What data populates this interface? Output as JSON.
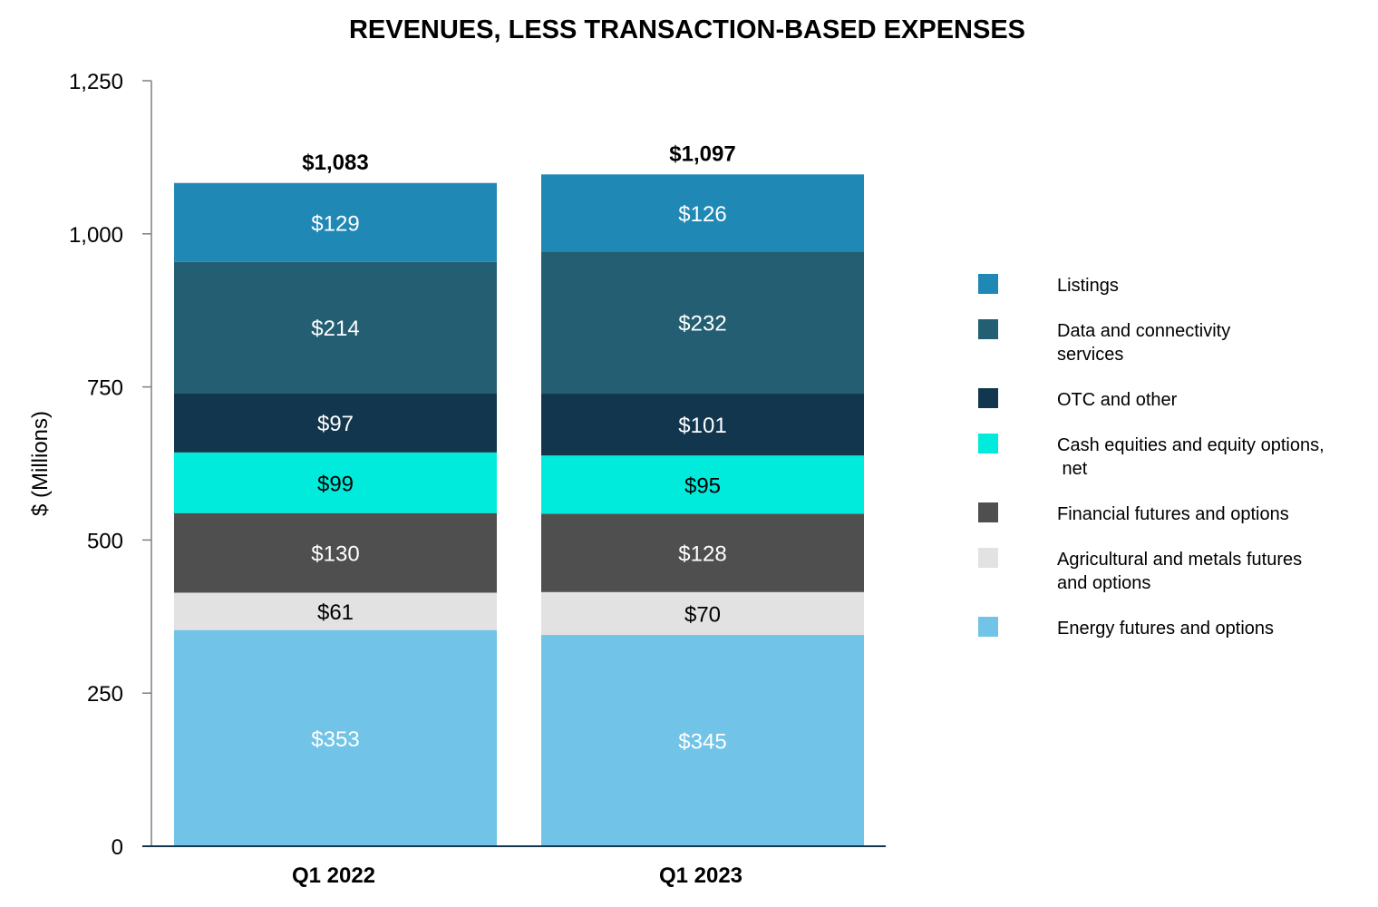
{
  "chart_data": {
    "type": "bar",
    "stacked": true,
    "title": "REVENUES, LESS TRANSACTION-BASED EXPENSES",
    "xlabel": "",
    "ylabel": "$ (Millions)",
    "ylim": [
      0,
      1250
    ],
    "yticks": [
      0,
      250,
      500,
      750,
      1000,
      1250
    ],
    "ytick_labels": [
      "0",
      "250",
      "500",
      "750",
      "1,000",
      "1,250"
    ],
    "categories": [
      "Q1 2022",
      "Q1 2023"
    ],
    "totals": [
      1083,
      1097
    ],
    "total_labels": [
      "$1,083",
      "$1,097"
    ],
    "series": [
      {
        "name": "Energy futures and options",
        "color": "#71C4E7",
        "label_color": "#ffffff",
        "values": [
          353,
          345
        ],
        "labels": [
          "$353",
          "$345"
        ]
      },
      {
        "name": "Agricultural and metals futures and options",
        "color": "#E2E2E2",
        "label_color": "#000000",
        "values": [
          61,
          70
        ],
        "labels": [
          "$61",
          "$70"
        ]
      },
      {
        "name": "Financial futures and options",
        "color": "#4F4F4F",
        "label_color": "#ffffff",
        "values": [
          130,
          128
        ],
        "labels": [
          "$130",
          "$128"
        ]
      },
      {
        "name": "Cash equities and equity options, net",
        "color": "#00EBDC",
        "label_color": "#000000",
        "values": [
          99,
          95
        ],
        "labels": [
          "$99",
          "$95"
        ]
      },
      {
        "name": "OTC and other",
        "color": "#12364E",
        "label_color": "#ffffff",
        "values": [
          97,
          101
        ],
        "labels": [
          "$97",
          "$101"
        ]
      },
      {
        "name": "Data and connectivity services",
        "color": "#235E72",
        "label_color": "#ffffff",
        "values": [
          214,
          232
        ],
        "labels": [
          "$214",
          "$232"
        ]
      },
      {
        "name": "Listings",
        "color": "#2088B5",
        "label_color": "#ffffff",
        "values": [
          129,
          126
        ],
        "labels": [
          "$129",
          "$126"
        ]
      }
    ],
    "legend": [
      {
        "name": "Listings",
        "lines": [
          "Listings"
        ],
        "color": "#2088B5"
      },
      {
        "name": "Data and connectivity services",
        "lines": [
          "Data and connectivity",
          "services"
        ],
        "color": "#235E72"
      },
      {
        "name": "OTC and other",
        "lines": [
          "OTC and other"
        ],
        "color": "#12364E"
      },
      {
        "name": "Cash equities and equity options, net",
        "lines": [
          "Cash equities and equity options,",
          " net"
        ],
        "color": "#00EBDC"
      },
      {
        "name": "Financial futures and options",
        "lines": [
          "Financial futures and options"
        ],
        "color": "#4F4F4F"
      },
      {
        "name": "Agricultural and metals futures and options",
        "lines": [
          "Agricultural and metals futures",
          "and options"
        ],
        "color": "#E2E2E2"
      },
      {
        "name": "Energy futures and options",
        "lines": [
          "Energy futures and options"
        ],
        "color": "#71C4E7"
      }
    ],
    "legend_position": "right",
    "grid": false
  }
}
